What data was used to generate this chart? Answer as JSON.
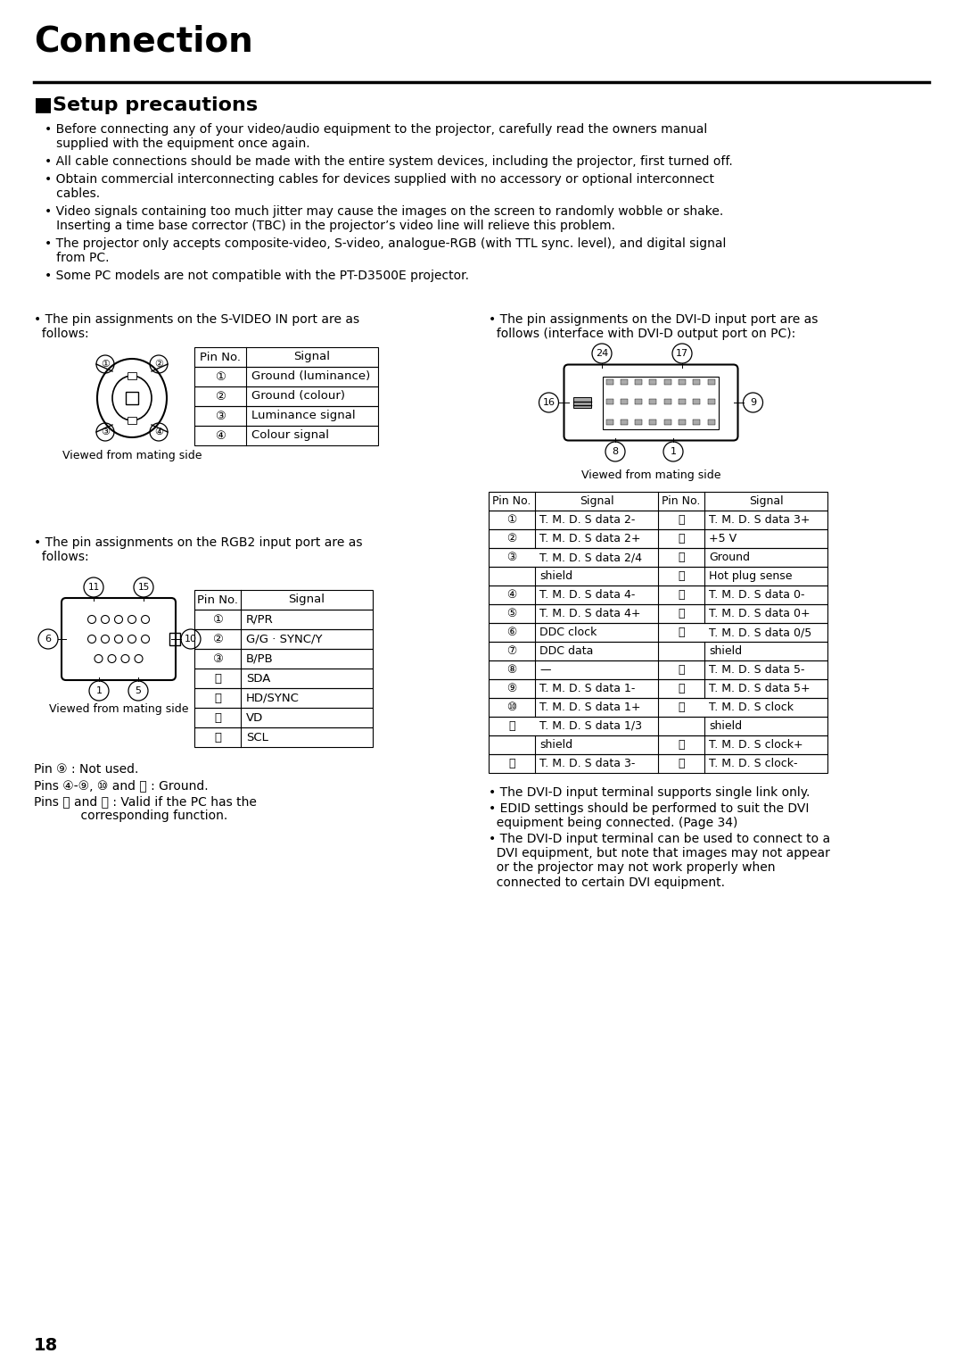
{
  "bg_color": "#ffffff",
  "title": "Connection",
  "section_title": "■Setup precautions",
  "bullets": [
    "• Before connecting any of your video/audio equipment to the projector, carefully read the owners manual\n   supplied with the equipment once again.",
    "• All cable connections should be made with the entire system devices, including the projector, first turned off.",
    "• Obtain commercial interconnecting cables for devices supplied with no accessory or optional interconnect\n   cables.",
    "• Video signals containing too much jitter may cause the images on the screen to randomly wobble or shake.\n   Inserting a time base corrector (TBC) in the projector’s video line will relieve this problem.",
    "• The projector only accepts composite-video, S-video, analogue-RGB (with TTL sync. level), and digital signal\n   from PC.",
    "• Some PC models are not compatible with the PT-D3500E projector."
  ],
  "svideo_label": "• The pin assignments on the S-VIDEO IN port are as\n  follows:",
  "svideo_table_headers": [
    "Pin No.",
    "Signal"
  ],
  "svideo_table_rows": [
    [
      "①",
      "Ground (luminance)"
    ],
    [
      "②",
      "Ground (colour)"
    ],
    [
      "③",
      "Luminance signal"
    ],
    [
      "④",
      "Colour signal"
    ]
  ],
  "svideo_caption": "Viewed from mating side",
  "dvi_label": "• The pin assignments on the DVI-D input port are as\n  follows (interface with DVI-D output port on PC):",
  "dvi_caption": "Viewed from mating side",
  "dvi_table_headers": [
    "Pin No.",
    "Signal",
    "Pin No.",
    "Signal"
  ],
  "dvi_display_rows": [
    [
      "①",
      "T. M. D. S data 2-",
      "⑬",
      "T. M. D. S data 3+",
      false,
      false
    ],
    [
      "②",
      "T. M. D. S data 2+",
      "⑭",
      "+5 V",
      false,
      false
    ],
    [
      "③",
      "T. M. D. S data 2/4",
      "⑮",
      "Ground",
      true,
      false
    ],
    [
      "",
      "shield",
      "⑯",
      "Hot plug sense",
      false,
      false
    ],
    [
      "④",
      "T. M. D. S data 4-",
      "⑰",
      "T. M. D. S data 0-",
      false,
      false
    ],
    [
      "⑤",
      "T. M. D. S data 4+",
      "⑱",
      "T. M. D. S data 0+",
      false,
      false
    ],
    [
      "⑥",
      "DDC clock",
      "⑲",
      "T. M. D. S data 0/5",
      false,
      true
    ],
    [
      "⑦",
      "DDC data",
      "",
      "shield",
      false,
      false
    ],
    [
      "⑧",
      "—",
      "⑳",
      "T. M. D. S data 5-",
      false,
      false
    ],
    [
      "⑨",
      "T. M. D. S data 1-",
      "⑴",
      "T. M. D. S data 5+",
      false,
      false
    ],
    [
      "⑩",
      "T. M. D. S data 1+",
      "⑵",
      "T. M. D. S clock",
      false,
      true
    ],
    [
      "⑪",
      "T. M. D. S data 1/3",
      "",
      "shield",
      true,
      false
    ],
    [
      "",
      "shield",
      "⑶",
      "T. M. D. S clock+",
      false,
      false
    ],
    [
      "⑫",
      "T. M. D. S data 3-",
      "⑷",
      "T. M. D. S clock-",
      false,
      false
    ]
  ],
  "rgb2_label": "• The pin assignments on the RGB2 input port are as\n  follows:",
  "rgb2_table_headers": [
    "Pin No.",
    "Signal"
  ],
  "rgb2_table_rows": [
    [
      "①",
      "R/PR"
    ],
    [
      "②",
      "G/G · SYNC/Y"
    ],
    [
      "③",
      "B/PB"
    ],
    [
      "⑫",
      "SDA"
    ],
    [
      "⑬",
      "HD/SYNC"
    ],
    [
      "⑭",
      "VD"
    ],
    [
      "⑮",
      "SCL"
    ]
  ],
  "rgb2_caption": "Viewed from mating side",
  "footnotes": [
    "Pin ⑨ : Not used.",
    "Pins ④-⑨, ⑩ and ⑪ : Ground.",
    "Pins ⑫ and ⑮ : Valid if the PC has the\n            corresponding function."
  ],
  "dvi_footnotes": [
    "• The DVI-D input terminal supports single link only.",
    "• EDID settings should be performed to suit the DVI\n  equipment being connected. (Page 34)",
    "• The DVI-D input terminal can be used to connect to a\n  DVI equipment, but note that images may not appear\n  or the projector may not work properly when\n  connected to certain DVI equipment."
  ],
  "page_number": "18"
}
